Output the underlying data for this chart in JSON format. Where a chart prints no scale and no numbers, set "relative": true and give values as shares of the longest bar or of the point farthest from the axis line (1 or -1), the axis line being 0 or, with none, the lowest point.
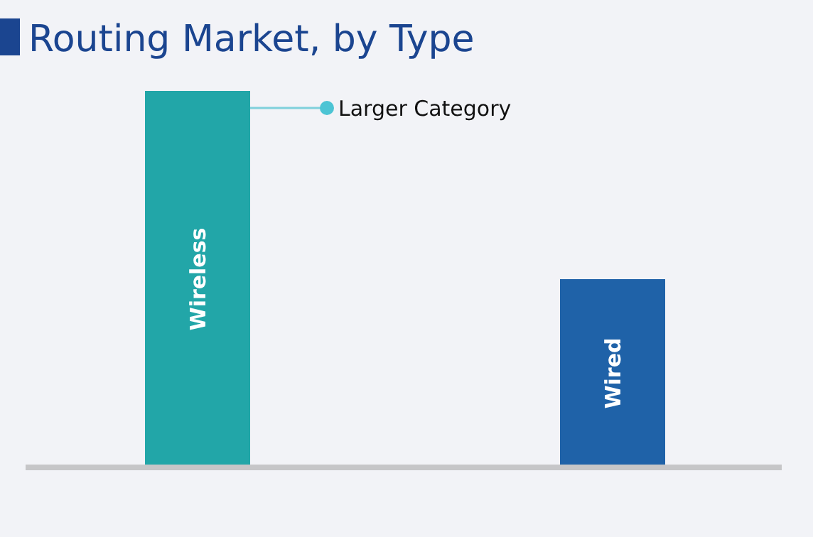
{
  "chart_data": {
    "type": "bar",
    "title": "Routing Market, by Type",
    "relative": true,
    "categories": [
      "Wireless",
      "Wired"
    ],
    "values": [
      1,
      0.5
    ],
    "colors": [
      "#22a6a8",
      "#1f62a8"
    ],
    "annotations": [
      "Larger Category"
    ]
  }
}
